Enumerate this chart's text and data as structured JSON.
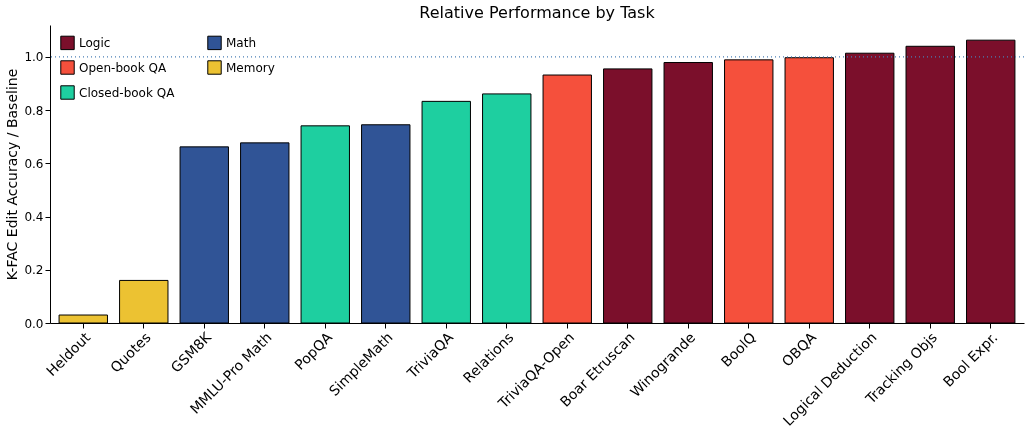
{
  "chart_data": {
    "type": "bar",
    "title": "Relative Performance by Task",
    "ylabel": "K-FAC Edit Accuracy / Baseline",
    "categories": [
      "Heldout",
      "Quotes",
      "GSM8K",
      "MMLU-Pro Math",
      "PopQA",
      "SimpleMath",
      "TriviaQA",
      "Relations",
      "TriviaQA-Open",
      "Boar Etruscan",
      "Winogrande",
      "BoolQ",
      "OBQA",
      "Logical Deduction",
      "Tracking Objs",
      "Bool Expr."
    ],
    "series": [
      {
        "name": "Logic",
        "color": "#7b0f2b",
        "values": [
          null,
          null,
          null,
          null,
          null,
          null,
          null,
          null,
          null,
          0.955,
          0.979,
          null,
          null,
          1.014,
          1.04,
          1.063
        ]
      },
      {
        "name": "Open-book QA",
        "color": "#f5503c",
        "values": [
          null,
          null,
          null,
          null,
          null,
          null,
          null,
          null,
          0.932,
          null,
          null,
          0.989,
          0.997,
          null,
          null,
          null
        ]
      },
      {
        "name": "Closed-book QA",
        "color": "#1ecfa0",
        "values": [
          null,
          null,
          null,
          null,
          0.741,
          null,
          0.833,
          0.861,
          null,
          null,
          null,
          null,
          null,
          null,
          null,
          null
        ]
      },
      {
        "name": "Math",
        "color": "#305496",
        "values": [
          null,
          null,
          0.662,
          0.677,
          null,
          0.745,
          null,
          null,
          null,
          null,
          null,
          null,
          null,
          null,
          null,
          null
        ]
      },
      {
        "name": "Memory",
        "color": "#ecc232",
        "values": [
          0.03,
          0.16,
          null,
          null,
          null,
          null,
          null,
          null,
          null,
          null,
          null,
          null,
          null,
          null,
          null,
          null
        ]
      }
    ],
    "ylim": [
      0,
      1.12
    ],
    "yticks": [
      {
        "value": 0,
        "label": "0.0"
      },
      0.2,
      0.4,
      0.6,
      0.8,
      {
        "value": 1,
        "label": "1.0"
      }
    ],
    "ref_lines": [
      {
        "axis": "y",
        "value": 1.0,
        "color": "#4a7fb5",
        "line_style": "dotted"
      }
    ],
    "grid": false,
    "legend": "top left"
  }
}
